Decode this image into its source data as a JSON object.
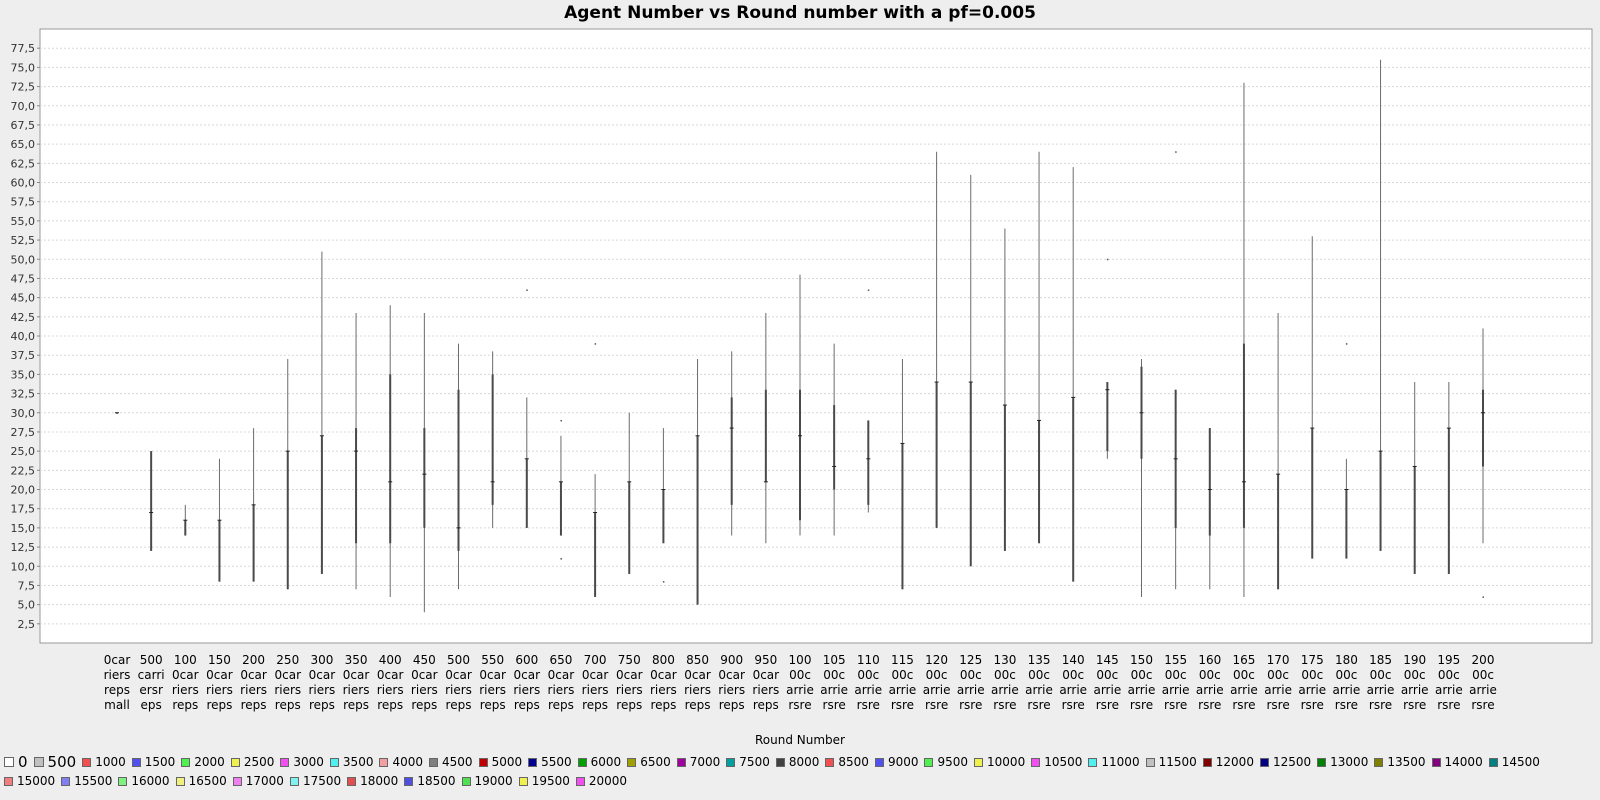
{
  "chart_data": {
    "type": "box",
    "title": "Agent Number vs Round number with a pf=0.005",
    "xlabel": "Round Number",
    "ylabel": "",
    "ylim": [
      0,
      80
    ],
    "y_ticks": [
      "2,5",
      "5,0",
      "7,5",
      "10,0",
      "12,5",
      "15,0",
      "17,5",
      "20,0",
      "22,5",
      "25,0",
      "27,5",
      "30,0",
      "32,5",
      "35,0",
      "37,5",
      "40,0",
      "42,5",
      "45,0",
      "47,5",
      "50,0",
      "52,5",
      "55,0",
      "57,5",
      "60,0",
      "62,5",
      "65,0",
      "67,5",
      "70,0",
      "72,5",
      "75,0",
      "77,5"
    ],
    "grid": true,
    "legend_position": "bottom",
    "categories": [
      [
        "0car",
        "riers",
        "reps",
        "mall"
      ],
      [
        "500",
        "carri",
        "ersr",
        "eps"
      ],
      [
        "100",
        "0car",
        "riers",
        "reps"
      ],
      [
        "150",
        "0car",
        "riers",
        "reps"
      ],
      [
        "200",
        "0car",
        "riers",
        "reps"
      ],
      [
        "250",
        "0car",
        "riers",
        "reps"
      ],
      [
        "300",
        "0car",
        "riers",
        "reps"
      ],
      [
        "350",
        "0car",
        "riers",
        "reps"
      ],
      [
        "400",
        "0car",
        "riers",
        "reps"
      ],
      [
        "450",
        "0car",
        "riers",
        "reps"
      ],
      [
        "500",
        "0car",
        "riers",
        "reps"
      ],
      [
        "550",
        "0car",
        "riers",
        "reps"
      ],
      [
        "600",
        "0car",
        "riers",
        "reps"
      ],
      [
        "650",
        "0car",
        "riers",
        "reps"
      ],
      [
        "700",
        "0car",
        "riers",
        "reps"
      ],
      [
        "750",
        "0car",
        "riers",
        "reps"
      ],
      [
        "800",
        "0car",
        "riers",
        "reps"
      ],
      [
        "850",
        "0car",
        "riers",
        "reps"
      ],
      [
        "900",
        "0car",
        "riers",
        "reps"
      ],
      [
        "950",
        "0car",
        "riers",
        "reps"
      ],
      [
        "100",
        "00c",
        "arrie",
        "rsre"
      ],
      [
        "105",
        "00c",
        "arrie",
        "rsre"
      ],
      [
        "110",
        "00c",
        "arrie",
        "rsre"
      ],
      [
        "115",
        "00c",
        "arrie",
        "rsre"
      ],
      [
        "120",
        "00c",
        "arrie",
        "rsre"
      ],
      [
        "125",
        "00c",
        "arrie",
        "rsre"
      ],
      [
        "130",
        "00c",
        "arrie",
        "rsre"
      ],
      [
        "135",
        "00c",
        "arrie",
        "rsre"
      ],
      [
        "140",
        "00c",
        "arrie",
        "rsre"
      ],
      [
        "145",
        "00c",
        "arrie",
        "rsre"
      ],
      [
        "150",
        "00c",
        "arrie",
        "rsre"
      ],
      [
        "155",
        "00c",
        "arrie",
        "rsre"
      ],
      [
        "160",
        "00c",
        "arrie",
        "rsre"
      ],
      [
        "165",
        "00c",
        "arrie",
        "rsre"
      ],
      [
        "170",
        "00c",
        "arrie",
        "rsre"
      ],
      [
        "175",
        "00c",
        "arrie",
        "rsre"
      ],
      [
        "180",
        "00c",
        "arrie",
        "rsre"
      ],
      [
        "185",
        "00c",
        "arrie",
        "rsre"
      ],
      [
        "190",
        "00c",
        "arrie",
        "rsre"
      ],
      [
        "195",
        "00c",
        "arrie",
        "rsre"
      ],
      [
        "200",
        "00c",
        "arrie",
        "rsre"
      ]
    ],
    "boxes": [
      {
        "min": 30,
        "q1": 30,
        "median": 30,
        "q3": 30,
        "max": 30,
        "outliers": []
      },
      {
        "min": 12,
        "q1": 12,
        "median": 17,
        "q3": 25,
        "max": 25,
        "outliers": []
      },
      {
        "min": 14,
        "q1": 14,
        "median": 16,
        "q3": 16,
        "max": 18,
        "outliers": []
      },
      {
        "min": 8,
        "q1": 8,
        "median": 16,
        "q3": 16,
        "max": 24,
        "outliers": []
      },
      {
        "min": 8,
        "q1": 8,
        "median": 18,
        "q3": 18,
        "max": 28,
        "outliers": []
      },
      {
        "min": 7,
        "q1": 7,
        "median": 25,
        "q3": 25,
        "max": 37,
        "outliers": []
      },
      {
        "min": 9,
        "q1": 9,
        "median": 27,
        "q3": 27,
        "max": 51,
        "outliers": []
      },
      {
        "min": 7,
        "q1": 13,
        "median": 25,
        "q3": 28,
        "max": 43,
        "outliers": []
      },
      {
        "min": 6,
        "q1": 13,
        "median": 21,
        "q3": 35,
        "max": 44,
        "outliers": []
      },
      {
        "min": 4,
        "q1": 15,
        "median": 22,
        "q3": 28,
        "max": 43,
        "outliers": []
      },
      {
        "min": 7,
        "q1": 12,
        "median": 15,
        "q3": 33,
        "max": 39,
        "outliers": []
      },
      {
        "min": 15,
        "q1": 18,
        "median": 21,
        "q3": 35,
        "max": 38,
        "outliers": []
      },
      {
        "min": 15,
        "q1": 15,
        "median": 24,
        "q3": 24,
        "max": 32,
        "outliers": [
          46
        ]
      },
      {
        "min": 14,
        "q1": 14,
        "median": 21,
        "q3": 21,
        "max": 27,
        "outliers": [
          11,
          29
        ]
      },
      {
        "min": 6,
        "q1": 6,
        "median": 17,
        "q3": 17,
        "max": 22,
        "outliers": [
          39
        ]
      },
      {
        "min": 9,
        "q1": 9,
        "median": 21,
        "q3": 21,
        "max": 30,
        "outliers": []
      },
      {
        "min": 13,
        "q1": 13,
        "median": 20,
        "q3": 20,
        "max": 28,
        "outliers": [
          8
        ]
      },
      {
        "min": 5,
        "q1": 5,
        "median": 27,
        "q3": 27,
        "max": 37,
        "outliers": []
      },
      {
        "min": 14,
        "q1": 18,
        "median": 28,
        "q3": 32,
        "max": 38,
        "outliers": []
      },
      {
        "min": 13,
        "q1": 21,
        "median": 21,
        "q3": 33,
        "max": 43,
        "outliers": []
      },
      {
        "min": 14,
        "q1": 16,
        "median": 27,
        "q3": 33,
        "max": 48,
        "outliers": []
      },
      {
        "min": 14,
        "q1": 20,
        "median": 23,
        "q3": 31,
        "max": 39,
        "outliers": []
      },
      {
        "min": 17,
        "q1": 18,
        "median": 24,
        "q3": 29,
        "max": 29,
        "outliers": [
          46
        ]
      },
      {
        "min": 7,
        "q1": 7,
        "median": 26,
        "q3": 26,
        "max": 37,
        "outliers": []
      },
      {
        "min": 15,
        "q1": 15,
        "median": 34,
        "q3": 34,
        "max": 64,
        "outliers": []
      },
      {
        "min": 10,
        "q1": 10,
        "median": 34,
        "q3": 34,
        "max": 61,
        "outliers": []
      },
      {
        "min": 12,
        "q1": 12,
        "median": 31,
        "q3": 31,
        "max": 54,
        "outliers": []
      },
      {
        "min": 13,
        "q1": 13,
        "median": 29,
        "q3": 29,
        "max": 64,
        "outliers": []
      },
      {
        "min": 8,
        "q1": 8,
        "median": 32,
        "q3": 32,
        "max": 62,
        "outliers": []
      },
      {
        "min": 24,
        "q1": 25,
        "median": 33,
        "q3": 34,
        "max": 34,
        "outliers": [
          50
        ]
      },
      {
        "min": 6,
        "q1": 24,
        "median": 30,
        "q3": 36,
        "max": 37,
        "outliers": []
      },
      {
        "min": 7,
        "q1": 15,
        "median": 24,
        "q3": 33,
        "max": 33,
        "outliers": [
          64
        ]
      },
      {
        "min": 7,
        "q1": 14,
        "median": 20,
        "q3": 28,
        "max": 28,
        "outliers": []
      },
      {
        "min": 6,
        "q1": 15,
        "median": 21,
        "q3": 39,
        "max": 73,
        "outliers": []
      },
      {
        "min": 7,
        "q1": 7,
        "median": 22,
        "q3": 22,
        "max": 43,
        "outliers": []
      },
      {
        "min": 11,
        "q1": 11,
        "median": 28,
        "q3": 28,
        "max": 53,
        "outliers": []
      },
      {
        "min": 11,
        "q1": 11,
        "median": 20,
        "q3": 20,
        "max": 24,
        "outliers": [
          39
        ]
      },
      {
        "min": 12,
        "q1": 12,
        "median": 25,
        "q3": 25,
        "max": 76,
        "outliers": []
      },
      {
        "min": 9,
        "q1": 9,
        "median": 23,
        "q3": 23,
        "max": 34,
        "outliers": []
      },
      {
        "min": 9,
        "q1": 9,
        "median": 28,
        "q3": 28,
        "max": 34,
        "outliers": []
      },
      {
        "min": 13,
        "q1": 23,
        "median": 30,
        "q3": 33,
        "max": 41,
        "outliers": [
          6
        ]
      }
    ],
    "legend": [
      {
        "label": "0",
        "color": "#ffffff",
        "big": true
      },
      {
        "label": "500",
        "color": "#c0c0c0",
        "big": true
      },
      {
        "label": "1000",
        "color": "#f05050"
      },
      {
        "label": "1500",
        "color": "#5050f0"
      },
      {
        "label": "2000",
        "color": "#50f050"
      },
      {
        "label": "2500",
        "color": "#f0f050"
      },
      {
        "label": "3000",
        "color": "#f050f0"
      },
      {
        "label": "3500",
        "color": "#50f0f0"
      },
      {
        "label": "4000",
        "color": "#f0a0a0"
      },
      {
        "label": "4500",
        "color": "#808080"
      },
      {
        "label": "5000",
        "color": "#c00000"
      },
      {
        "label": "5500",
        "color": "#000090"
      },
      {
        "label": "6000",
        "color": "#00a000"
      },
      {
        "label": "6500",
        "color": "#a0a000"
      },
      {
        "label": "7000",
        "color": "#a000a0"
      },
      {
        "label": "7500",
        "color": "#00a0a0"
      },
      {
        "label": "8000",
        "color": "#404040"
      },
      {
        "label": "8500",
        "color": "#f05050"
      },
      {
        "label": "9000",
        "color": "#5050f0"
      },
      {
        "label": "9500",
        "color": "#50f050"
      },
      {
        "label": "10000",
        "color": "#f0f050"
      },
      {
        "label": "10500",
        "color": "#f050f0"
      },
      {
        "label": "11000",
        "color": "#50f0f0"
      },
      {
        "label": "11500",
        "color": "#c0c0c0"
      },
      {
        "label": "12000",
        "color": "#800000"
      },
      {
        "label": "12500",
        "color": "#000080"
      },
      {
        "label": "13000",
        "color": "#008000"
      },
      {
        "label": "13500",
        "color": "#808000"
      },
      {
        "label": "14000",
        "color": "#800080"
      },
      {
        "label": "14500",
        "color": "#008080"
      },
      {
        "label": "15000",
        "color": "#f08080"
      },
      {
        "label": "15500",
        "color": "#8080f0"
      },
      {
        "label": "16000",
        "color": "#80f080"
      },
      {
        "label": "16500",
        "color": "#f0f080"
      },
      {
        "label": "17000",
        "color": "#f080f0"
      },
      {
        "label": "17500",
        "color": "#80f0f0"
      },
      {
        "label": "18000",
        "color": "#e05050"
      },
      {
        "label": "18500",
        "color": "#5050e0"
      },
      {
        "label": "19000",
        "color": "#50e050"
      },
      {
        "label": "19500",
        "color": "#f0f050"
      },
      {
        "label": "20000",
        "color": "#f050f0"
      }
    ]
  }
}
